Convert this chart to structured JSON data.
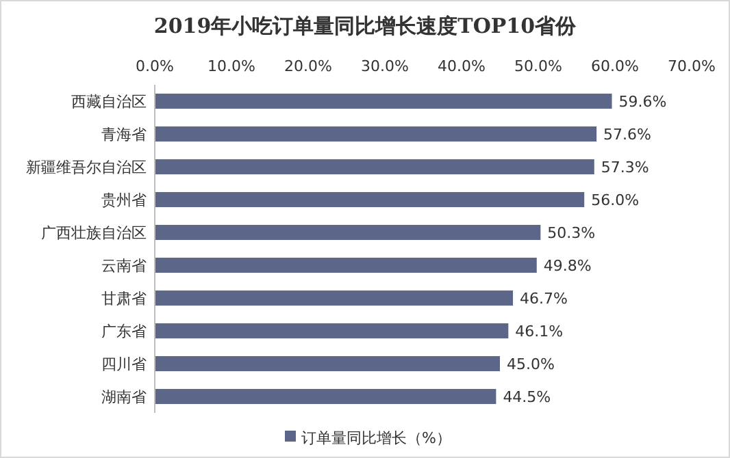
{
  "chart_data": {
    "type": "bar",
    "orientation": "horizontal",
    "title": "2019年小吃订单量同比增长速度TOP10省份",
    "categories": [
      "西藏自治区",
      "青海省",
      "新疆维吾尔自治区",
      "贵州省",
      "广西壮族自治区",
      "云南省",
      "甘肃省",
      "广东省",
      "四川省",
      "湖南省"
    ],
    "series": [
      {
        "name": "订单量同比增长（%）",
        "color": "#5b6689",
        "values": [
          59.6,
          57.6,
          57.3,
          56.0,
          50.3,
          49.8,
          46.7,
          46.1,
          45.0,
          44.5
        ],
        "value_labels": [
          "59.6%",
          "57.6%",
          "57.3%",
          "56.0%",
          "50.3%",
          "49.8%",
          "46.7%",
          "46.1%",
          "45.0%",
          "44.5%"
        ]
      }
    ],
    "xlim": [
      0,
      70
    ],
    "xticks": [
      {
        "value": 0,
        "label": "0.0%"
      },
      {
        "value": 10,
        "label": "10.0%"
      },
      {
        "value": 20,
        "label": "20.0%"
      },
      {
        "value": 30,
        "label": "30.0%"
      },
      {
        "value": 40,
        "label": "40.0%"
      },
      {
        "value": 50,
        "label": "50.0%"
      },
      {
        "value": 60,
        "label": "60.0%"
      },
      {
        "value": 70,
        "label": "70.0%"
      }
    ],
    "legend": "bottom"
  }
}
